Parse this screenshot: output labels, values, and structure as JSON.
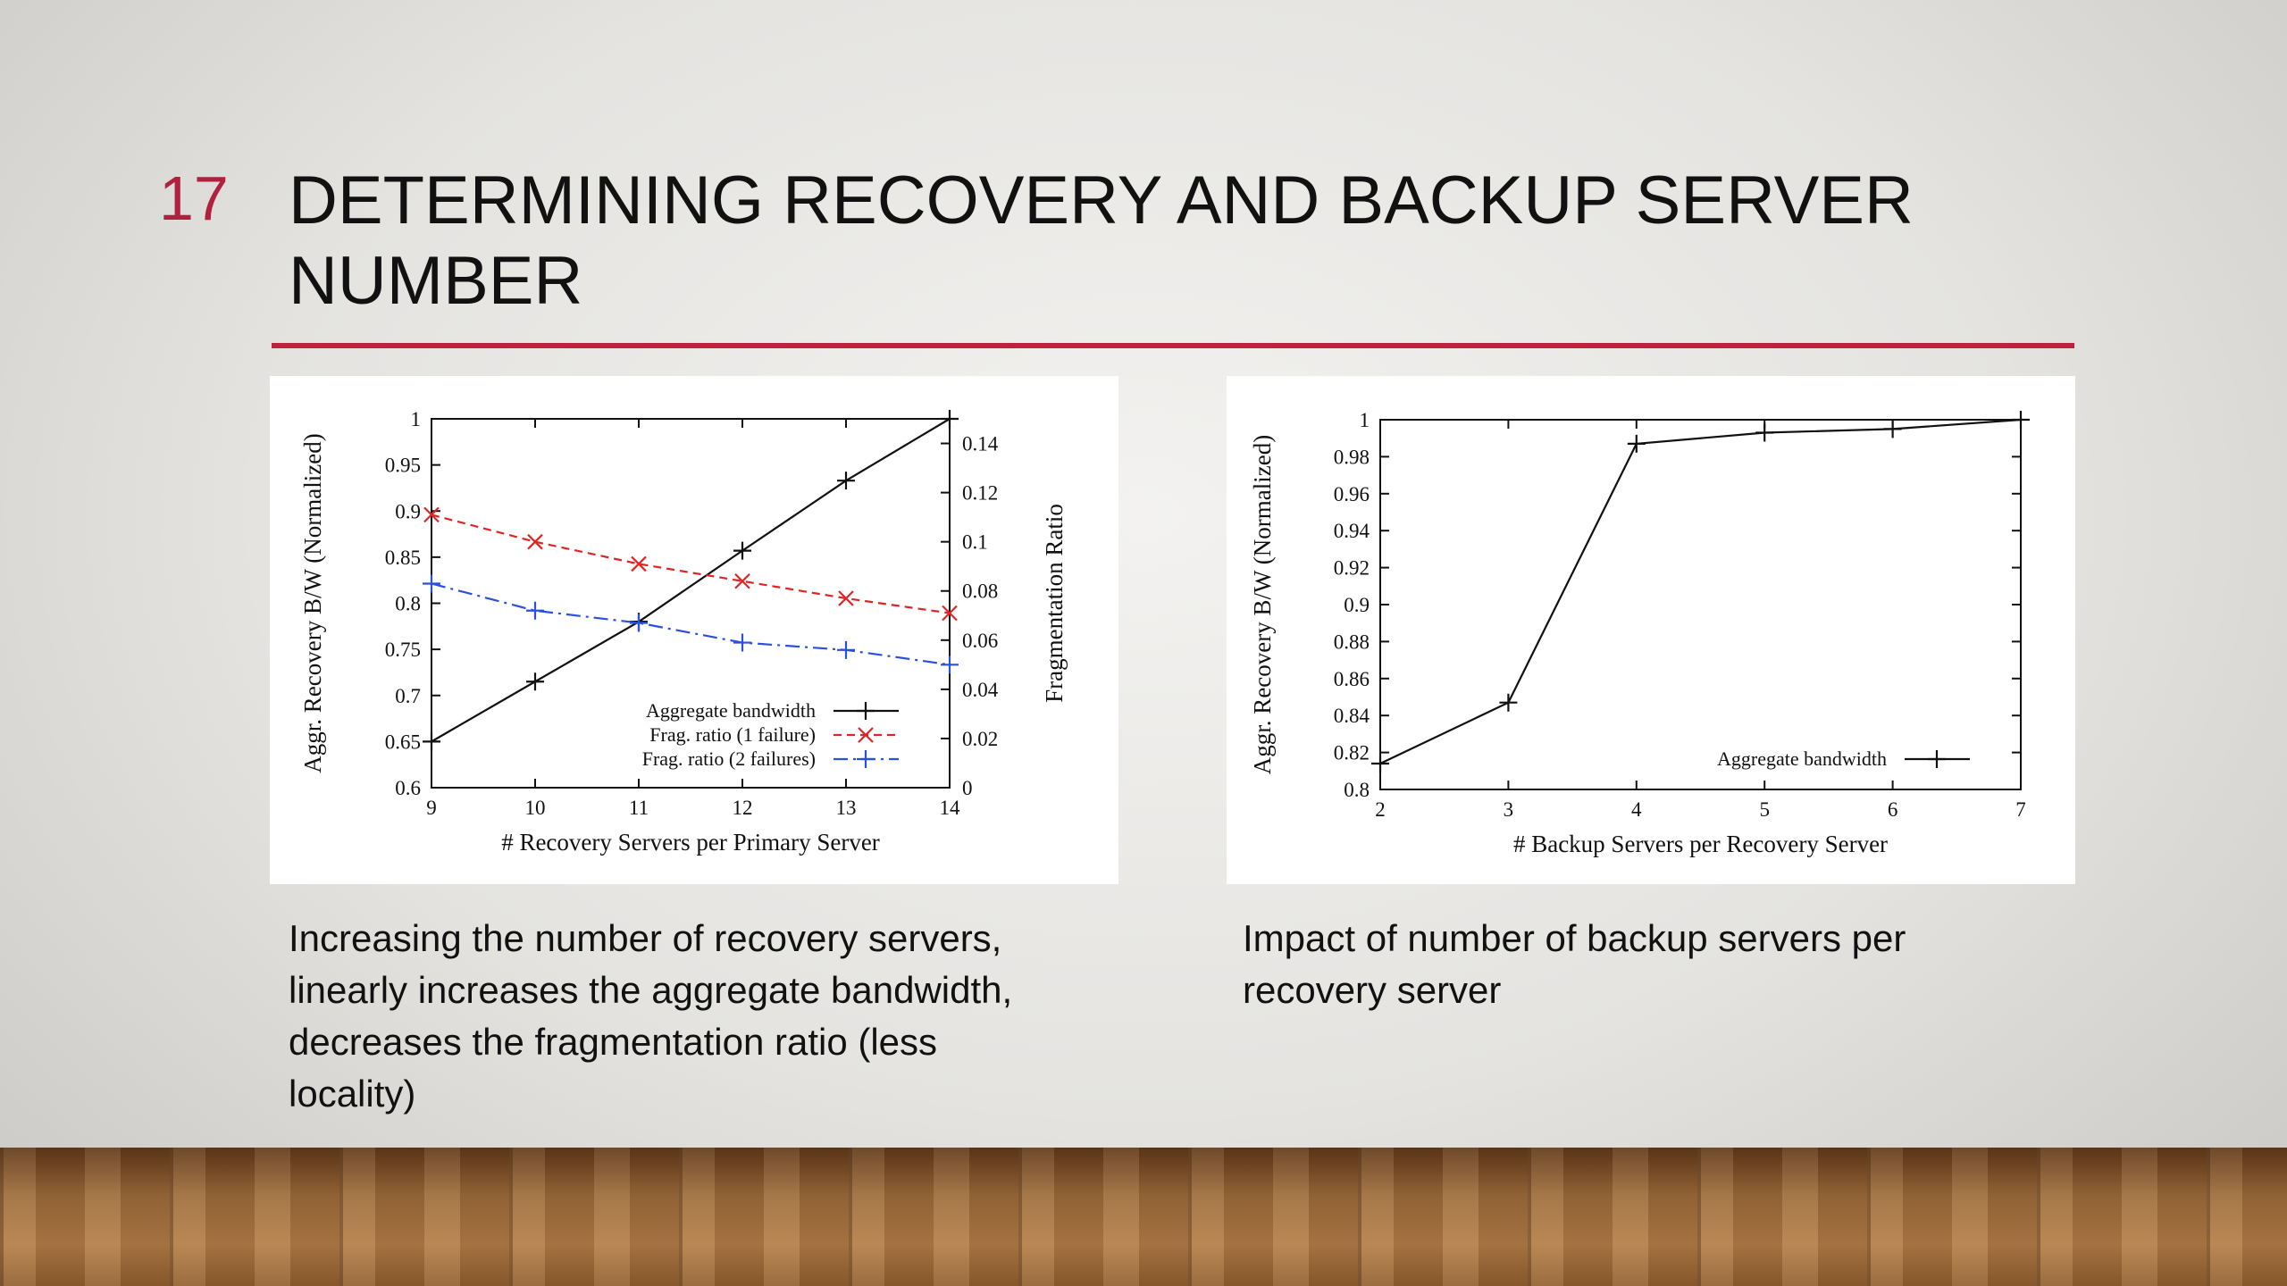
{
  "slide_number": "17",
  "title": "DETERMINING RECOVERY AND BACKUP SERVER NUMBER",
  "captions": [
    [
      "Increasing the number of recovery servers,",
      "linearly increases the aggregate bandwidth,",
      "decreases the fragmentation ratio (less",
      "locality)"
    ],
    [
      "Impact of number of backup servers per",
      "recovery server"
    ]
  ],
  "chart_data": [
    {
      "type": "line",
      "x_label": "# Recovery Servers per Primary Server",
      "y_label": "Aggr. Recovery B/W (Normalized)",
      "y2_label": "Fragmentation Ratio",
      "x": [
        9,
        10,
        11,
        12,
        13,
        14
      ],
      "xlim": [
        9,
        14
      ],
      "xticks": [
        9,
        10,
        11,
        12,
        13,
        14
      ],
      "ylim": [
        0.6,
        1
      ],
      "yticks": [
        0.6,
        0.65,
        0.7,
        0.75,
        0.8,
        0.85,
        0.9,
        0.95,
        1
      ],
      "y2lim": [
        0,
        0.15
      ],
      "y2ticks": [
        0,
        0.02,
        0.04,
        0.06,
        0.08,
        0.1,
        0.12,
        0.14
      ],
      "legend": "lower right",
      "series": [
        {
          "name": "Aggregate bandwidth",
          "color": "#111111",
          "dash": "solid",
          "marker": "plus",
          "values": [
            0.65,
            0.715,
            0.78,
            0.857,
            0.933,
            1.0
          ]
        },
        {
          "name": "Frag. ratio (1 failure)",
          "color": "#e02424",
          "dash": "dashed",
          "marker": "cross",
          "axis": "y2",
          "values": [
            0.111,
            0.1,
            0.091,
            0.084,
            0.077,
            0.071
          ]
        },
        {
          "name": "Frag. ratio (2 failures)",
          "color": "#2b4fe0",
          "dash": "dashdot",
          "marker": "plus",
          "axis": "y2",
          "values": [
            0.083,
            0.072,
            0.067,
            0.059,
            0.056,
            0.05
          ]
        }
      ]
    },
    {
      "type": "line",
      "x_label": "# Backup Servers per Recovery Server",
      "y_label": "Aggr. Recovery B/W (Normalized)",
      "x": [
        2,
        3,
        4,
        5,
        6,
        7
      ],
      "xlim": [
        2,
        7
      ],
      "xticks": [
        2,
        3,
        4,
        5,
        6,
        7
      ],
      "ylim": [
        0.8,
        1
      ],
      "yticks": [
        0.8,
        0.82,
        0.84,
        0.86,
        0.88,
        0.9,
        0.92,
        0.94,
        0.96,
        0.98,
        1
      ],
      "legend": "lower right",
      "series": [
        {
          "name": "Aggregate bandwidth",
          "color": "#111111",
          "dash": "solid",
          "marker": "plus",
          "values": [
            0.814,
            0.847,
            0.987,
            0.993,
            0.995,
            1.0
          ]
        }
      ]
    }
  ]
}
